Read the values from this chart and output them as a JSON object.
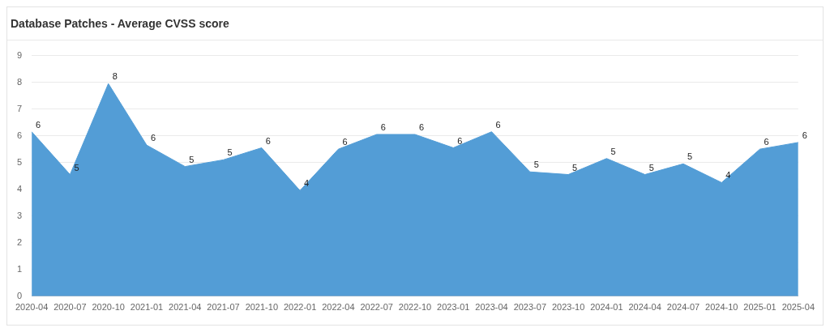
{
  "chart_data": {
    "type": "area",
    "title": "Database Patches - Average CVSS score",
    "categories": [
      "2020-04",
      "2020-07",
      "2020-10",
      "2021-01",
      "2021-04",
      "2021-07",
      "2021-10",
      "2022-01",
      "2022-04",
      "2022-07",
      "2022-10",
      "2023-01",
      "2023-04",
      "2023-07",
      "2023-10",
      "2024-01",
      "2024-04",
      "2024-07",
      "2024-10",
      "2025-01",
      "2025-04"
    ],
    "values": [
      6.15,
      4.55,
      7.95,
      5.65,
      4.85,
      5.1,
      5.55,
      3.95,
      5.5,
      6.05,
      6.05,
      5.55,
      6.15,
      4.65,
      4.55,
      5.15,
      4.55,
      4.95,
      4.25,
      5.5,
      5.75
    ],
    "value_labels": [
      "6",
      "5",
      "8",
      "6",
      "5",
      "5",
      "6",
      "4",
      "6",
      "6",
      "6",
      "6",
      "6",
      "5",
      "5",
      "5",
      "5",
      "5",
      "4",
      "6",
      "6"
    ],
    "color": "#539dd6",
    "ylim": [
      0,
      9
    ],
    "yticks": [
      0,
      1,
      2,
      3,
      4,
      5,
      6,
      7,
      8,
      9
    ],
    "grid": "y",
    "legend": false
  }
}
